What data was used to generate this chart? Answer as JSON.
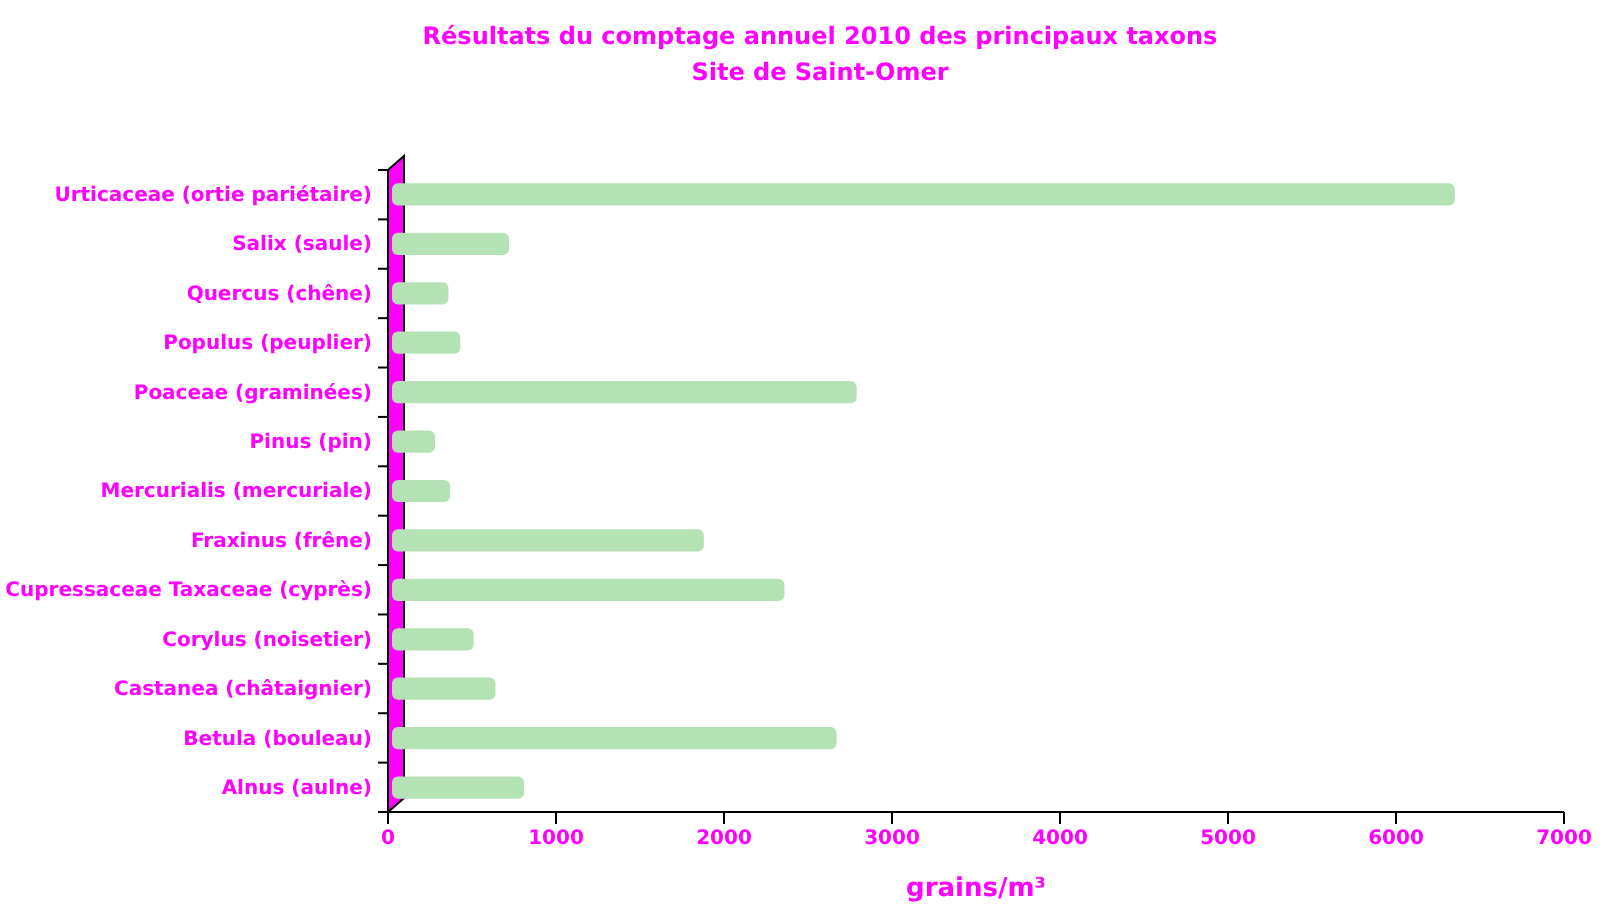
{
  "chart_data": {
    "type": "bar",
    "orientation": "horizontal",
    "title": "Résultats du comptage annuel 2010 des principaux taxons",
    "subtitle": "Site de Saint-Omer",
    "xlabel": "grains/m³",
    "categories": [
      "Urticaceae (ortie pariétaire)",
      "Salix (saule)",
      "Quercus (chêne)",
      "Populus (peuplier)",
      "Poaceae (graminées)",
      "Pinus (pin)",
      "Mercurialis (mercuriale)",
      "Fraxinus (frêne)",
      "Cupressaceae Taxaceae (cyprès)",
      "Corylus (noisetier)",
      "Castanea (châtaignier)",
      "Betula (bouleau)",
      "Alnus (aulne)"
    ],
    "values": [
      6350,
      720,
      360,
      430,
      2790,
      280,
      370,
      1880,
      2360,
      510,
      640,
      2670,
      810
    ],
    "color": "#b5e2b5",
    "xlim": [
      0,
      7000
    ],
    "xticks": [
      0,
      1000,
      2000,
      3000,
      4000,
      5000,
      6000,
      7000
    ],
    "grid": false
  }
}
